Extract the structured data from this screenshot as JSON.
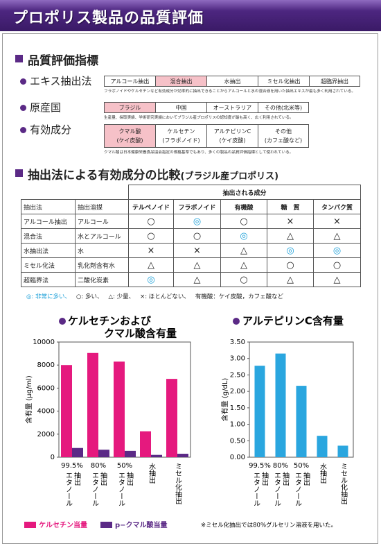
{
  "header": {
    "title": "プロポリス製品の品質評価"
  },
  "quality_index": {
    "title": "品質評価指標",
    "highlight_color": "#f6c1c8",
    "rows": [
      {
        "label": "エキス抽出法",
        "options": [
          [
            "アルコール抽出"
          ],
          [
            "混合抽出"
          ],
          [
            "水抽出"
          ],
          [
            "ミセル化抽出"
          ],
          [
            "超臨界抽出"
          ]
        ],
        "highlight": 1,
        "note": "フラボノイドやケルセチンなど有効成分が効率的に抽出できることからアルコールと水の混合液を用いた抽出エキスが最も多く利用されている。"
      },
      {
        "label": "原産国",
        "options": [
          [
            "ブラジル"
          ],
          [
            "中国"
          ],
          [
            "オーストラリア"
          ],
          [
            "その他(北米等)"
          ]
        ],
        "highlight": 0,
        "note": "生産量、採取実績、学術研究実績においてブラジル産プロポリスの認知度が最も高く、広く利用されている。"
      },
      {
        "label": "有効成分",
        "options": [
          [
            "クマル酸",
            "(ケイ皮酸)"
          ],
          [
            "ケルセチン",
            "(フラボノイド)"
          ],
          [
            "アルテピリンC",
            "(ケイ皮酸)"
          ],
          [
            "その他",
            "(カフェ酸など)"
          ]
        ],
        "highlight": 0,
        "note": "クマル酸は日本健康栄養食品協会指定の規格基準でもあり、多くの製品の品質評価指標として使われている。"
      }
    ]
  },
  "comparison": {
    "title": "抽出法による有効成分の比較",
    "subtitle": "(ブラジル産プロポリス)",
    "table": {
      "group_header": "抽出される成分",
      "columns": [
        "抽出法",
        "抽出溶媒",
        "テルペノイド",
        "フラボノイド",
        "有機酸",
        "糖　質",
        "タンパク質"
      ],
      "rows": [
        [
          "アルコール抽出",
          "アルコール",
          "○",
          "◎",
          "○",
          "×",
          "×"
        ],
        [
          "混合法",
          "水とアルコール",
          "○",
          "○",
          "◎",
          "△",
          "△"
        ],
        [
          "水抽出法",
          "水",
          "×",
          "×",
          "△",
          "◎",
          "◎"
        ],
        [
          "ミセル化法",
          "乳化剤含有水",
          "△",
          "△",
          "△",
          "○",
          "○"
        ],
        [
          "超臨界法",
          "二酸化炭素",
          "◎",
          "△",
          "○",
          "△",
          "△"
        ]
      ]
    },
    "legend": [
      "◎: 非常に多い、",
      "○: 多い、",
      "△: 少量、",
      "×: ほとんどない、",
      "有機酸：ケイ皮酸，カフェ酸など"
    ]
  },
  "chart_data": [
    {
      "type": "bar",
      "title": [
        "ケルセチンおよび",
        "クマル酸含有量"
      ],
      "ylabel": "含有量 (μg/ml)",
      "categories": [
        [
          "99.5%",
          "エタノール",
          "抽出"
        ],
        [
          "80%",
          "エタノール",
          "抽出"
        ],
        [
          "50%",
          "エタノール",
          "抽出"
        ],
        [
          "水抽出"
        ],
        [
          "ミセル化抽出"
        ]
      ],
      "series": [
        {
          "name": "ケルセチン当量",
          "color": "#e5197e",
          "values": [
            8000,
            9050,
            8300,
            2250,
            6800
          ]
        },
        {
          "name": "p−クマル酸当量",
          "color": "#5b2a86",
          "values": [
            800,
            650,
            550,
            200,
            300
          ]
        }
      ],
      "ylim": [
        0,
        10000
      ],
      "yticks": [
        0,
        2000,
        4000,
        6000,
        8000,
        10000
      ]
    },
    {
      "type": "bar",
      "title": [
        "アルテピリンC含有量"
      ],
      "ylabel": "含有量 (g/dL)",
      "categories": [
        [
          "99.5%",
          "エタノール",
          "抽出"
        ],
        [
          "80%",
          "エタノール",
          "抽出"
        ],
        [
          "50%",
          "エタノール",
          "抽出"
        ],
        [
          "水抽出"
        ],
        [
          "ミセル化抽出"
        ]
      ],
      "values": [
        2.78,
        3.15,
        2.17,
        0.65,
        0.35
      ],
      "color": "#2aa6df",
      "ylim": [
        0,
        3.5
      ],
      "yticks": [
        {
          "value": 0,
          "label": "0.00"
        },
        {
          "value": 0.5,
          "label": "0.50"
        },
        {
          "value": 1,
          "label": "1.00"
        },
        {
          "value": 1.5,
          "label": "1.50"
        },
        {
          "value": 2,
          "label": "2.00"
        },
        {
          "value": 2.5,
          "label": "2.50"
        },
        {
          "value": 3,
          "label": "3.00"
        },
        {
          "value": 3.5,
          "label": "3.50"
        }
      ]
    }
  ],
  "footnote": "※ミセル化抽出では80%グルセリン溶液を用いた。"
}
